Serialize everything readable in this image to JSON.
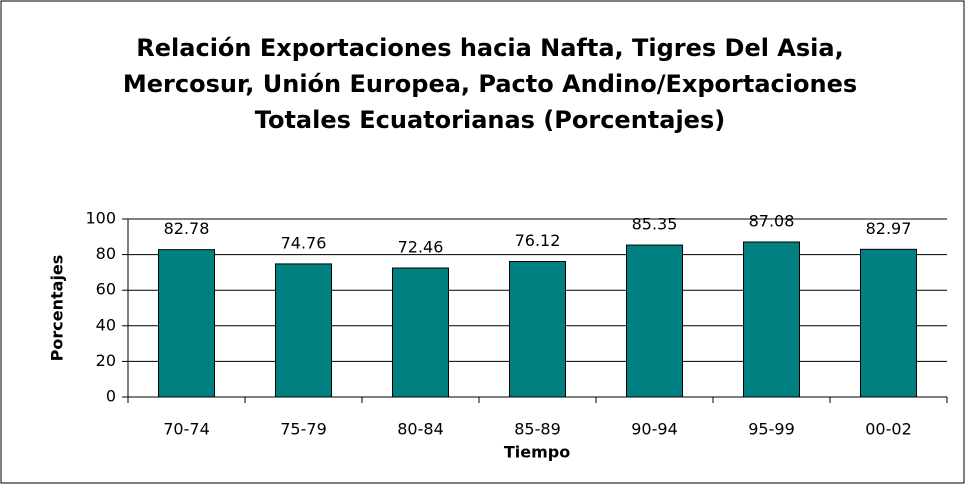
{
  "chart_data": {
    "type": "bar",
    "title": "Relación Exportaciones hacia Nafta, Tigres Del Asia, Mercosur, Unión Europea, Pacto Andino/Exportaciones Totales Ecuatorianas (Porcentajes)",
    "xlabel": "Tiempo",
    "ylabel": "Porcentajes",
    "categories": [
      "70-74",
      "75-79",
      "80-84",
      "85-89",
      "90-94",
      "95-99",
      "00-02"
    ],
    "values": [
      82.78,
      74.76,
      72.46,
      76.12,
      85.35,
      87.08,
      82.97
    ],
    "color": "#008080",
    "ylim": [
      0,
      100
    ],
    "yticks": [
      0,
      20,
      40,
      60,
      80,
      100
    ],
    "grid": true
  }
}
